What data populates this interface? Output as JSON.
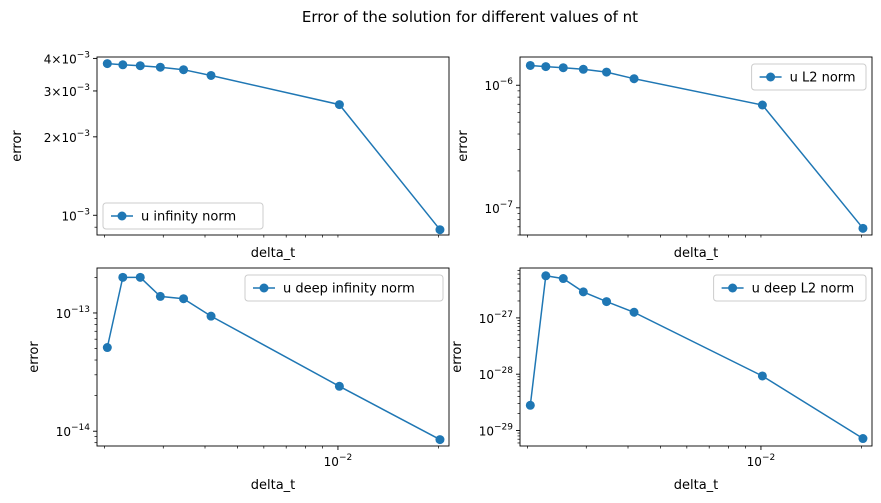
{
  "figure": {
    "title": "Error of the solution for different values of nt"
  },
  "chart_data": [
    {
      "type": "line",
      "xscale": "log",
      "yscale": "log",
      "xlabel": "delta_t",
      "ylabel": "error",
      "xlim": [
        0.0019,
        0.0215
      ],
      "ylim": [
        0.00084,
        0.00405
      ],
      "xticks": [],
      "xtick_labels": [],
      "yticks": [
        0.001,
        0.002,
        0.003,
        0.004
      ],
      "ytick_labels": [
        [
          "10",
          "−3"
        ],
        [
          "2×10",
          "−3"
        ],
        [
          "3×10",
          "−3"
        ],
        [
          "4×10",
          "−3"
        ]
      ],
      "legend": {
        "position": "lower left",
        "entries": [
          "u infinity norm"
        ]
      },
      "series": [
        {
          "name": "u infinity norm",
          "color": "#1f77b4",
          "x": [
            0.00204,
            0.00227,
            0.00256,
            0.00294,
            0.00345,
            0.00417,
            0.0101,
            0.0202
          ],
          "y": [
            0.00382,
            0.00378,
            0.00375,
            0.0037,
            0.00362,
            0.00344,
            0.00266,
            0.00088
          ]
        }
      ]
    },
    {
      "type": "line",
      "xscale": "log",
      "yscale": "log",
      "xlabel": "delta_t",
      "ylabel": "error",
      "xlim": [
        0.0019,
        0.0215
      ],
      "ylim": [
        6e-08,
        1.7e-06
      ],
      "xticks": [],
      "xtick_labels": [],
      "yticks": [
        1e-07,
        1e-06
      ],
      "ytick_labels": [
        [
          "10",
          "−7"
        ],
        [
          "10",
          "−6"
        ]
      ],
      "legend": {
        "position": "upper right",
        "entries": [
          "u L2 norm"
        ]
      },
      "series": [
        {
          "name": "u L2 norm",
          "color": "#1f77b4",
          "x": [
            0.00204,
            0.00227,
            0.00256,
            0.00294,
            0.00345,
            0.00417,
            0.0101,
            0.0202
          ],
          "y": [
            1.45e-06,
            1.42e-06,
            1.39e-06,
            1.35e-06,
            1.28e-06,
            1.13e-06,
            6.9e-07,
            6.8e-08
          ]
        }
      ]
    },
    {
      "type": "line",
      "xscale": "log",
      "yscale": "log",
      "xlabel": "delta_t",
      "ylabel": "error",
      "xlim": [
        0.0019,
        0.0215
      ],
      "ylim": [
        7.5e-15,
        2.4e-13
      ],
      "xticks": [
        0.01
      ],
      "xtick_labels": [
        [
          "10",
          "−2"
        ]
      ],
      "yticks": [
        1e-14,
        1e-13
      ],
      "ytick_labels": [
        [
          "10",
          "−14"
        ],
        [
          "10",
          "−13"
        ]
      ],
      "legend": {
        "position": "upper right",
        "entries": [
          "u deep infinity norm"
        ]
      },
      "series": [
        {
          "name": "u deep infinity norm",
          "color": "#1f77b4",
          "x": [
            0.00204,
            0.00227,
            0.00256,
            0.00294,
            0.00345,
            0.00417,
            0.0101,
            0.0202
          ],
          "y": [
            5.1e-14,
            2e-13,
            2e-13,
            1.38e-13,
            1.32e-13,
            9.4e-14,
            2.4e-14,
            8.5e-15
          ]
        }
      ]
    },
    {
      "type": "line",
      "xscale": "log",
      "yscale": "log",
      "xlabel": "delta_t",
      "ylabel": "error",
      "xlim": [
        0.0019,
        0.0215
      ],
      "ylim": [
        5.3e-30,
        7.7e-27
      ],
      "xticks": [
        0.01
      ],
      "xtick_labels": [
        [
          "10",
          "−2"
        ]
      ],
      "yticks": [
        1e-29,
        1e-28,
        1e-27
      ],
      "ytick_labels": [
        [
          "10",
          "−29"
        ],
        [
          "10",
          "−28"
        ],
        [
          "10",
          "−27"
        ]
      ],
      "legend": {
        "position": "upper right",
        "entries": [
          "u deep L2 norm"
        ]
      },
      "series": [
        {
          "name": "u deep L2 norm",
          "color": "#1f77b4",
          "x": [
            0.00204,
            0.00227,
            0.00256,
            0.00294,
            0.00345,
            0.00417,
            0.0101,
            0.0202
          ],
          "y": [
            2.8e-29,
            5.6e-27,
            5e-27,
            2.9e-27,
            1.95e-27,
            1.26e-27,
            9.3e-29,
            7.2e-30
          ]
        }
      ]
    }
  ]
}
